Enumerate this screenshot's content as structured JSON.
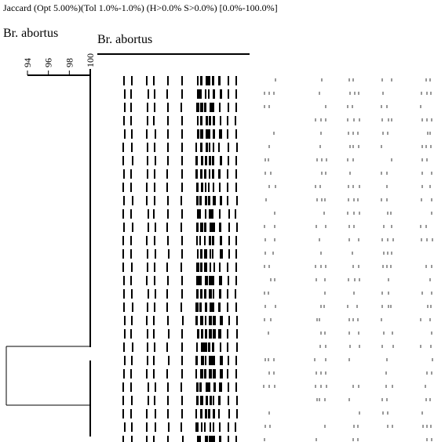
{
  "header": {
    "title": "Jaccard (Opt 5.00%)(Tol 1.0%-1.0%) (H>0.0% S>0.0%) [0.0%-100.0%]"
  },
  "dendrogram": {
    "title": "Br. abortus",
    "scale_ticks": [
      94,
      96,
      98,
      100
    ]
  },
  "gel": {
    "title": "Br. abortus"
  }
}
